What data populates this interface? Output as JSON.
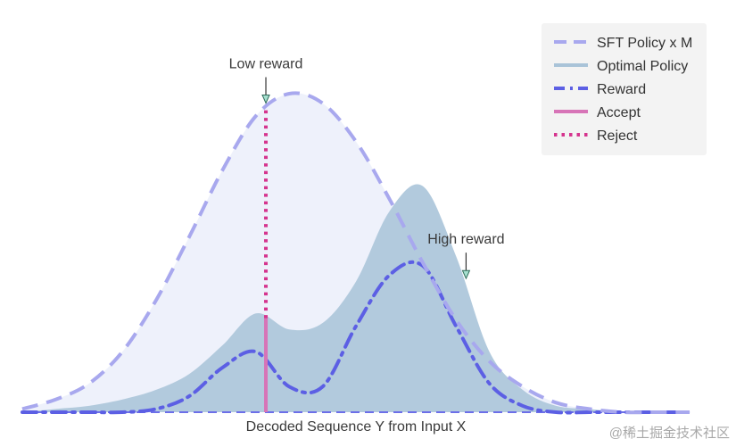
{
  "chart_data": {
    "type": "area",
    "xlabel": "Decoded Sequence Y from Input X",
    "ylabel": "",
    "x": [
      0.0,
      0.05,
      0.1,
      0.15,
      0.2,
      0.25,
      0.3,
      0.35,
      0.4,
      0.45,
      0.5,
      0.55,
      0.6,
      0.65,
      0.7,
      0.75,
      0.8,
      0.85,
      0.9,
      0.95,
      1.0
    ],
    "series": [
      {
        "name": "SFT Policy x M",
        "kind": "line",
        "style": "dashed",
        "color": "#a8a8ee",
        "fill": "#eef1fb",
        "values": [
          0.01,
          0.04,
          0.09,
          0.19,
          0.35,
          0.55,
          0.76,
          0.93,
          1.0,
          0.97,
          0.85,
          0.67,
          0.47,
          0.29,
          0.16,
          0.08,
          0.03,
          0.01,
          0.0,
          0.0,
          0.0
        ]
      },
      {
        "name": "Optimal Policy",
        "kind": "area",
        "color": "#b2cadd",
        "values": [
          0.0,
          0.01,
          0.02,
          0.04,
          0.07,
          0.12,
          0.21,
          0.31,
          0.26,
          0.28,
          0.41,
          0.63,
          0.71,
          0.49,
          0.19,
          0.07,
          0.02,
          0.01,
          0.0,
          0.0,
          0.0
        ]
      },
      {
        "name": "Reward",
        "kind": "line",
        "style": "dashdot",
        "color": "#5c5fe4",
        "values": [
          0.0,
          0.0,
          0.0,
          0.0,
          0.01,
          0.05,
          0.14,
          0.19,
          0.08,
          0.08,
          0.27,
          0.43,
          0.46,
          0.27,
          0.09,
          0.02,
          0.0,
          0.0,
          0.0,
          0.0,
          0.0
        ]
      },
      {
        "name": "Accept",
        "kind": "vertical-segment",
        "color": "#d774b7"
      },
      {
        "name": "Reject",
        "kind": "vertical-dotted",
        "color": "#d5348e"
      }
    ],
    "annotations": [
      {
        "text": "Low reward",
        "target": "SFT Policy x M",
        "x": 0.365
      },
      {
        "text": "High reward",
        "target": "Optimal Policy",
        "x": 0.665
      }
    ],
    "sample_x": 0.365,
    "legend": {
      "position": "top-right",
      "entries": [
        {
          "label": "SFT Policy x M",
          "style": "dashed",
          "color": "#a8a8ee"
        },
        {
          "label": "Optimal Policy",
          "style": "solid",
          "color": "#a9c3d8"
        },
        {
          "label": "Reward",
          "style": "dashdot",
          "color": "#5c5fe4"
        },
        {
          "label": "Accept",
          "style": "solid",
          "color": "#d774b7"
        },
        {
          "label": "Reject",
          "style": "dotted",
          "color": "#d5348e"
        }
      ]
    },
    "grid": false
  },
  "watermark": "@稀土掘金技术社区"
}
